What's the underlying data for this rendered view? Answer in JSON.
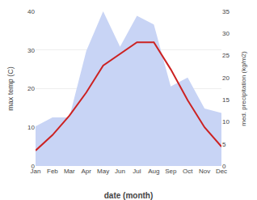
{
  "chart_data": {
    "type": "line",
    "categories": [
      "Jan",
      "Feb",
      "Mar",
      "Apr",
      "May",
      "Jun",
      "Jul",
      "Aug",
      "Sep",
      "Oct",
      "Nov",
      "Dec"
    ],
    "xlabel": "date (month)",
    "ylabel": "max temp (C)",
    "y2label": "med. precipitation (kg/m2)",
    "series": [
      {
        "type": "area",
        "axis": "y2",
        "color": "#c8d4f5",
        "values": [
          9,
          11,
          11,
          26,
          35,
          27,
          34,
          32,
          18,
          20,
          13,
          12
        ]
      },
      {
        "type": "line",
        "color": "#cc2222",
        "values": [
          4,
          8,
          13,
          19,
          26,
          29,
          32,
          32,
          25,
          17,
          10,
          5
        ]
      }
    ],
    "ylim": [
      0,
      40
    ],
    "yticks": [
      0,
      10,
      20,
      30,
      40
    ],
    "y2lim": [
      0,
      35
    ],
    "y2ticks": [
      0,
      5,
      10,
      15,
      20,
      25,
      30,
      35
    ],
    "grid": true
  }
}
